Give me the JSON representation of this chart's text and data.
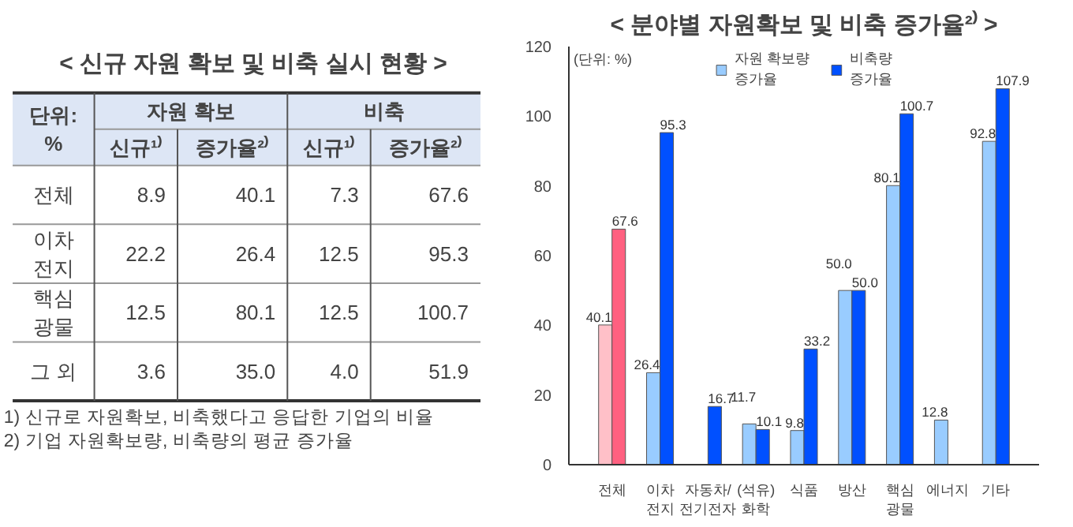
{
  "chart_data": [
    {
      "type": "other",
      "title": "< 신규 자원 확보 및 비축 실시 현황 >",
      "annotations": [
        "단위:\n%",
        "자원 확보",
        "비축",
        "신규¹⁾",
        "증가율²⁾",
        "신규¹⁾",
        "증가율²⁾",
        "전체",
        "8.9",
        "40.1",
        "7.3",
        "67.6",
        "이차\n전지",
        "22.2",
        "26.4",
        "12.5",
        "95.3",
        "핵심\n광물",
        "12.5",
        "80.1",
        "12.5",
        "100.7",
        "그 외",
        "3.6",
        "35.0",
        "4.0",
        "51.9",
        "1) 신규로 자원확보, 비축했다고 응답한 기업의 비율",
        "2) 기업 자원확보량, 비축량의 평균 증가율"
      ]
    },
    {
      "type": "bar",
      "title": "< 분야별 자원확보 및 비축 증가율²⁾ >",
      "categories": [
        "전체",
        "이차\n전지",
        "자동차/\n전기전자",
        "(석유)\n화학",
        "식품",
        "방산",
        "핵심\n광물",
        "에너지",
        "기타"
      ],
      "series": [
        {
          "name": "자원 확보량\n증가율",
          "color": "#99ccff",
          "colors": [
            "#ffc0c8",
            "#99ccff",
            "#99ccff",
            "#99ccff",
            "#99ccff",
            "#99ccff",
            "#99ccff",
            "#99ccff",
            "#99ccff"
          ],
          "values": [
            40.1,
            26.4,
            null,
            11.7,
            9.8,
            50.0,
            80.1,
            12.8,
            92.8
          ],
          "value_labels": [
            "40.1",
            "26.4",
            null,
            "11.7",
            "9.8",
            "50.0",
            "80.1",
            "12.8",
            "92.8"
          ]
        },
        {
          "name": "비축량\n증가율",
          "color": "#0050ff",
          "colors": [
            "#ff6080",
            "#0050ff",
            "#0050ff",
            "#0050ff",
            "#0050ff",
            "#0050ff",
            "#0050ff",
            "#0050ff",
            "#0050ff"
          ],
          "values": [
            67.6,
            95.3,
            16.7,
            10.1,
            33.2,
            50.0,
            100.7,
            null,
            107.9
          ],
          "value_labels": [
            "67.6",
            "95.3",
            "16.7",
            "10.1",
            "33.2",
            "50.0",
            "100.7",
            null,
            "107.9"
          ]
        }
      ],
      "ylim": [
        0,
        120
      ],
      "yticks": [
        0,
        20,
        40,
        60,
        80,
        100,
        120
      ],
      "legend": "top",
      "grid": false,
      "annotations": [
        "(단위: %)"
      ]
    }
  ]
}
